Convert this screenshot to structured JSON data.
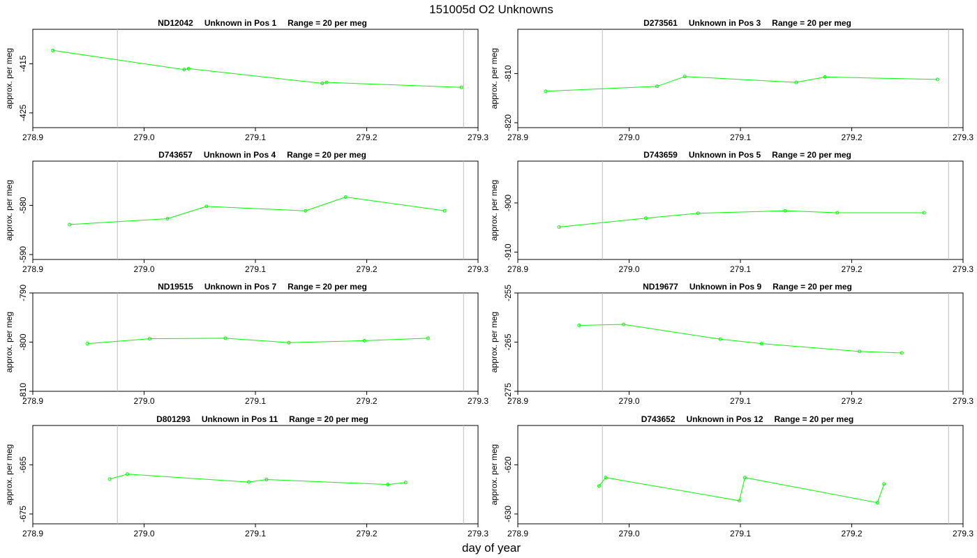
{
  "figure": {
    "title": "151005d  O2 Unknowns",
    "xlabel": "day of year"
  },
  "chart_data": [
    {
      "type": "line",
      "title_parts": [
        "ND12042",
        "Unknown in Pos 1",
        "Range = 20 per meg"
      ],
      "ylabel": "approx. per meg",
      "x_ticks": [
        "278.9",
        "279.0",
        "279.1",
        "279.2",
        "279.3"
      ],
      "y_ticks": [
        "-415",
        "-425"
      ],
      "xlim": [
        278.9,
        279.3
      ],
      "ylim": [
        -428,
        -408
      ],
      "vlines": [
        278.976,
        279.287
      ],
      "series": [
        {
          "color": "#00ff00",
          "x": [
            278.918,
            279.036,
            279.04,
            279.16,
            279.164,
            279.285
          ],
          "y": [
            -412.3,
            -416.2,
            -416.0,
            -419.0,
            -418.8,
            -419.8
          ]
        }
      ]
    },
    {
      "type": "line",
      "title_parts": [
        "D273561",
        "Unknown in Pos 3",
        "Range = 20 per meg"
      ],
      "ylabel": "approx. per meg",
      "x_ticks": [
        "278.9",
        "279.0",
        "279.1",
        "279.2",
        "279.3"
      ],
      "y_ticks": [
        "-810",
        "-820"
      ],
      "xlim": [
        278.9,
        279.3
      ],
      "ylim": [
        -821,
        -801
      ],
      "vlines": [
        278.976,
        279.287
      ],
      "series": [
        {
          "color": "#00ff00",
          "x": [
            278.925,
            279.025,
            279.05,
            279.15,
            279.176,
            279.277
          ],
          "y": [
            -813.6,
            -812.6,
            -810.6,
            -811.8,
            -810.7,
            -811.2
          ]
        }
      ]
    },
    {
      "type": "line",
      "title_parts": [
        "D743657",
        "Unknown in Pos 4",
        "Range = 20 per meg"
      ],
      "ylabel": "approx. per meg",
      "x_ticks": [
        "278.9",
        "279.0",
        "279.1",
        "279.2",
        "279.3"
      ],
      "y_ticks": [
        "-580",
        "-590"
      ],
      "xlim": [
        278.9,
        279.3
      ],
      "ylim": [
        -591,
        -571
      ],
      "vlines": [
        278.976,
        279.287
      ],
      "series": [
        {
          "color": "#00ff00",
          "x": [
            278.933,
            279.021,
            279.056,
            279.145,
            279.181,
            279.27
          ],
          "y": [
            -583.9,
            -582.7,
            -580.2,
            -581.1,
            -578.3,
            -581.1
          ]
        }
      ]
    },
    {
      "type": "line",
      "title_parts": [
        "D743659",
        "Unknown in Pos 5",
        "Range = 20 per meg"
      ],
      "ylabel": "approx. per meg",
      "x_ticks": [
        "278.9",
        "279.0",
        "279.1",
        "279.2",
        "279.3"
      ],
      "y_ticks": [
        "-900",
        "-910"
      ],
      "xlim": [
        278.9,
        279.3
      ],
      "ylim": [
        -911.5,
        -891.5
      ],
      "vlines": [
        278.976,
        279.287
      ],
      "series": [
        {
          "color": "#00ff00",
          "x": [
            278.937,
            279.015,
            279.062,
            279.14,
            279.187,
            279.265
          ],
          "y": [
            -904.9,
            -903.1,
            -902.1,
            -901.6,
            -902.0,
            -902.0
          ]
        }
      ]
    },
    {
      "type": "line",
      "title_parts": [
        "ND19515",
        "Unknown in Pos 7",
        "Range = 20 per meg"
      ],
      "ylabel": "approx. per meg",
      "x_ticks": [
        "278.9",
        "279.0",
        "279.1",
        "279.2",
        "279.3"
      ],
      "y_ticks": [
        "-790",
        "-800",
        "-810"
      ],
      "xlim": [
        278.9,
        279.3
      ],
      "ylim": [
        -810,
        -790
      ],
      "vlines": [
        278.976,
        279.287
      ],
      "series": [
        {
          "color": "#00ff00",
          "x": [
            278.949,
            279.005,
            279.073,
            279.13,
            279.198,
            279.255
          ],
          "y": [
            -800.3,
            -799.3,
            -799.2,
            -800.1,
            -799.7,
            -799.2
          ]
        }
      ]
    },
    {
      "type": "line",
      "title_parts": [
        "ND19677",
        "Unknown in Pos 9",
        "Range = 20 per meg"
      ],
      "ylabel": "approx. per meg",
      "x_ticks": [
        "278.9",
        "279.0",
        "279.1",
        "279.2",
        "279.3"
      ],
      "y_ticks": [
        "-255",
        "-265",
        "-275"
      ],
      "xlim": [
        278.9,
        279.3
      ],
      "ylim": [
        -275,
        -255
      ],
      "vlines": [
        278.976,
        279.287
      ],
      "series": [
        {
          "color": "#00ff00",
          "x": [
            278.955,
            278.995,
            279.082,
            279.119,
            279.207,
            279.245
          ],
          "y": [
            -261.6,
            -261.4,
            -264.4,
            -265.3,
            -266.9,
            -267.2
          ]
        }
      ]
    },
    {
      "type": "line",
      "title_parts": [
        "D801293",
        "Unknown in Pos 11",
        "Range = 20 per meg"
      ],
      "ylabel": "approx. per meg",
      "x_ticks": [
        "278.9",
        "279.0",
        "279.1",
        "279.2",
        "279.3"
      ],
      "y_ticks": [
        "-665",
        "-675"
      ],
      "xlim": [
        278.9,
        279.3
      ],
      "ylim": [
        -677,
        -657
      ],
      "vlines": [
        278.976,
        279.287
      ],
      "series": [
        {
          "color": "#00ff00",
          "x": [
            278.969,
            278.985,
            279.094,
            279.11,
            279.219,
            279.235
          ],
          "y": [
            -667.9,
            -666.9,
            -668.5,
            -668.0,
            -669.0,
            -668.6
          ]
        }
      ]
    },
    {
      "type": "line",
      "title_parts": [
        "D743652",
        "Unknown in Pos 12",
        "Range = 20 per meg"
      ],
      "ylabel": "approx. per meg",
      "x_ticks": [
        "278.9",
        "279.0",
        "279.1",
        "279.2",
        "279.3"
      ],
      "y_ticks": [
        "-620",
        "-630"
      ],
      "xlim": [
        278.9,
        279.3
      ],
      "ylim": [
        -632,
        -612
      ],
      "vlines": [
        278.976,
        279.287
      ],
      "series": [
        {
          "color": "#00ff00",
          "x": [
            278.973,
            278.979,
            279.099,
            279.104,
            279.223,
            279.229
          ],
          "y": [
            -624.3,
            -622.6,
            -627.3,
            -622.6,
            -627.7,
            -623.9
          ]
        }
      ]
    }
  ]
}
